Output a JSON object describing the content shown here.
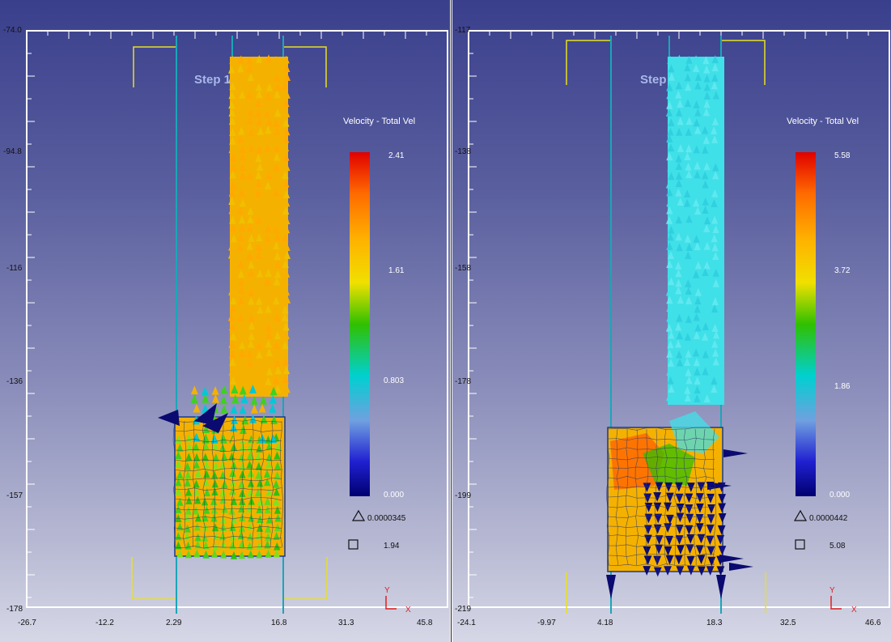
{
  "panels": [
    {
      "id": "left",
      "step_label": "Step 1",
      "legend": {
        "title": "Velocity - Total Vel",
        "values": [
          "2.41",
          "1.61",
          "0.803",
          "0.000"
        ],
        "triangle_value": "0.0000345",
        "square_value": "1.94"
      },
      "y_ticks": [
        "-74.0",
        "-94.8",
        "-116",
        "-136",
        "-157",
        "-178"
      ],
      "x_ticks": [
        "-26.7",
        "-12.2",
        "2.29",
        "16.8",
        "31.3",
        "45.8"
      ],
      "axis_x": "X",
      "axis_y": "Y"
    },
    {
      "id": "right",
      "step_label": "Step",
      "legend": {
        "title": "Velocity - Total Vel",
        "values": [
          "5.58",
          "3.72",
          "1.86",
          "0.000"
        ],
        "triangle_value": "0.0000442",
        "square_value": "5.08"
      },
      "y_ticks": [
        "-117",
        "-138",
        "-158",
        "-178",
        "-199",
        "-219"
      ],
      "x_ticks": [
        "-24.1",
        "-9.97",
        "4.18",
        "18.3",
        "32.5",
        "46.6"
      ],
      "axis_x": "X",
      "axis_y": "Y"
    }
  ],
  "colors": {
    "colorbar": [
      "#e00000",
      "#ff6a00",
      "#ffb000",
      "#f0e000",
      "#30c000",
      "#00d0d0",
      "#70a0e0",
      "#2020d0",
      "#000070"
    ],
    "die_lines": "#1aa6b8",
    "punch_lines": "#e8e020",
    "mesh_orange": "#f5b100",
    "arrow_cyan": "#40e0e8",
    "arrow_green": "#40d020",
    "arrow_navy": "#0a0a70"
  }
}
